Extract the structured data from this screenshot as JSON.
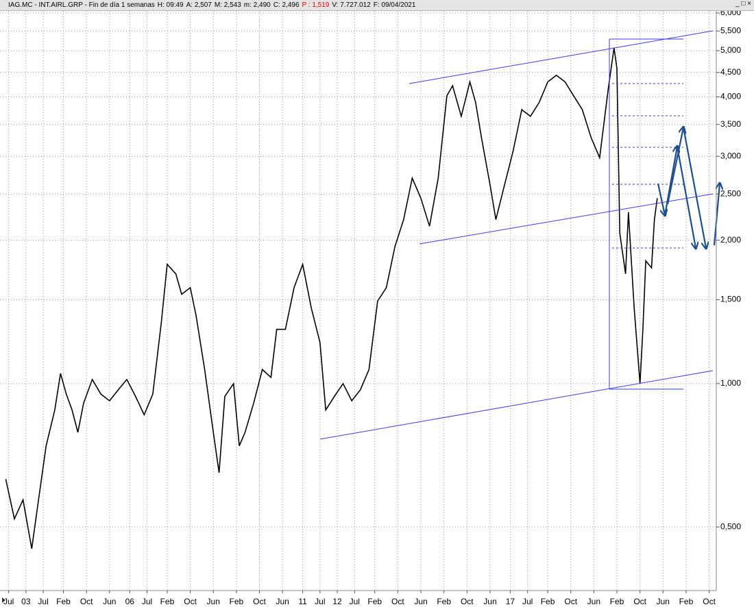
{
  "header": {
    "items": [
      {
        "text": "IAG.MC - INT.AIRL.GRP - Fin de día 1 semanas",
        "color": "#000000"
      },
      {
        "text": "H: 09:49",
        "color": "#000000"
      },
      {
        "text": "A: 2,507",
        "color": "#000000"
      },
      {
        "text": "M: 2,543",
        "color": "#000000"
      },
      {
        "text": "m: 2,490",
        "color": "#000000"
      },
      {
        "text": "C: 2,496",
        "color": "#000000"
      },
      {
        "text": "P : 1,519",
        "color": "#e00000"
      },
      {
        "text": "V: 7.727.012",
        "color": "#000000"
      },
      {
        "text": "F: 09/04/2021",
        "color": "#000000"
      }
    ]
  },
  "chart_data": {
    "type": "line",
    "color": "#000000",
    "log_scale": true,
    "grid": true,
    "x": [
      "2002-06",
      "2002-09",
      "2002-12",
      "2003-03",
      "2003-05",
      "2003-08",
      "2003-11",
      "2004-01",
      "2004-03",
      "2004-05",
      "2004-07",
      "2004-09",
      "2004-12",
      "2005-03",
      "2005-06",
      "2005-09",
      "2005-12",
      "2006-03",
      "2006-06",
      "2006-09",
      "2006-12",
      "2007-02",
      "2007-05",
      "2007-07",
      "2007-10",
      "2007-12",
      "2008-03",
      "2008-06",
      "2008-08",
      "2008-10",
      "2009-01",
      "2009-03",
      "2009-05",
      "2009-08",
      "2009-11",
      "2010-02",
      "2010-04",
      "2010-07",
      "2010-10",
      "2011-01",
      "2011-04",
      "2011-07",
      "2011-09",
      "2011-12",
      "2012-03",
      "2012-06",
      "2012-09",
      "2012-12",
      "2013-03",
      "2013-06",
      "2013-09",
      "2013-12",
      "2014-03",
      "2014-06",
      "2014-09",
      "2014-12",
      "2015-03",
      "2015-05",
      "2015-08",
      "2015-11",
      "2016-01",
      "2016-03",
      "2016-06",
      "2016-08",
      "2016-11",
      "2017-02",
      "2017-05",
      "2017-08",
      "2017-11",
      "2018-02",
      "2018-05",
      "2018-08",
      "2018-11",
      "2019-02",
      "2019-05",
      "2019-08",
      "2019-11",
      "2020-01",
      "2020-02",
      "2020-03",
      "2020-05",
      "2020-06",
      "2020-08",
      "2020-10",
      "2020-11",
      "2020-12",
      "2021-02",
      "2021-03",
      "2021-04"
    ],
    "values": [
      0.63,
      0.52,
      0.57,
      0.45,
      0.55,
      0.74,
      0.88,
      1.05,
      0.95,
      0.88,
      0.79,
      0.91,
      1.02,
      0.95,
      0.92,
      0.97,
      1.02,
      0.94,
      0.86,
      0.95,
      1.35,
      1.78,
      1.7,
      1.54,
      1.59,
      1.39,
      1.07,
      0.79,
      0.65,
      0.94,
      1.0,
      0.74,
      0.79,
      0.91,
      1.07,
      1.03,
      1.3,
      1.3,
      1.59,
      1.78,
      1.44,
      1.22,
      0.88,
      0.94,
      1.0,
      0.92,
      0.97,
      1.07,
      1.49,
      1.59,
      1.94,
      2.21,
      2.7,
      2.45,
      2.14,
      2.7,
      4.02,
      4.22,
      3.64,
      4.3,
      3.89,
      3.29,
      2.61,
      2.21,
      2.61,
      3.08,
      3.76,
      3.64,
      3.89,
      4.3,
      4.44,
      4.3,
      4.02,
      3.76,
      3.29,
      2.98,
      4.16,
      5.07,
      4.59,
      2.07,
      1.7,
      2.29,
      1.44,
      1.0,
      1.3,
      1.81,
      1.75,
      2.21,
      2.45
    ],
    "xlim": [
      "2002-04",
      "2022-12"
    ],
    "xticks": [
      {
        "value": "2002-07",
        "label": "Jul"
      },
      {
        "value": "2003-01",
        "label": "03"
      },
      {
        "value": "2003-07",
        "label": "Jul"
      },
      {
        "value": "2004-02",
        "label": "Feb"
      },
      {
        "value": "2004-10",
        "label": "Oct"
      },
      {
        "value": "2005-06",
        "label": "Jun"
      },
      {
        "value": "2006-01",
        "label": "06"
      },
      {
        "value": "2006-07",
        "label": "Jul"
      },
      {
        "value": "2007-02",
        "label": "Feb"
      },
      {
        "value": "2007-10",
        "label": "Oct"
      },
      {
        "value": "2008-06",
        "label": "Jun"
      },
      {
        "value": "2009-02",
        "label": "Feb"
      },
      {
        "value": "2009-10",
        "label": "Oct"
      },
      {
        "value": "2010-06",
        "label": "Jun"
      },
      {
        "value": "2011-01",
        "label": "11"
      },
      {
        "value": "2011-07",
        "label": "Jul"
      },
      {
        "value": "2012-01",
        "label": "12"
      },
      {
        "value": "2012-07",
        "label": "Jul"
      },
      {
        "value": "2013-02",
        "label": "Feb"
      },
      {
        "value": "2013-10",
        "label": "Oct"
      },
      {
        "value": "2014-06",
        "label": "Jun"
      },
      {
        "value": "2015-02",
        "label": "Feb"
      },
      {
        "value": "2015-10",
        "label": "Oct"
      },
      {
        "value": "2016-06",
        "label": "Jun"
      },
      {
        "value": "2017-01",
        "label": "17"
      },
      {
        "value": "2017-07",
        "label": "Jul"
      },
      {
        "value": "2018-02",
        "label": "Feb"
      },
      {
        "value": "2018-10",
        "label": "Oct"
      },
      {
        "value": "2019-06",
        "label": "Jun"
      },
      {
        "value": "2020-02",
        "label": "Feb"
      },
      {
        "value": "2020-10",
        "label": "Oct"
      },
      {
        "value": "2021-06",
        "label": "Jun"
      },
      {
        "value": "2022-02",
        "label": "Feb"
      },
      {
        "value": "2022-10",
        "label": "Oct"
      }
    ],
    "ylim": [
      0.37,
      6.14
    ],
    "yticks": [
      {
        "value": 6,
        "label": "6,000"
      },
      {
        "value": 5.5,
        "label": "5,500"
      },
      {
        "value": 5,
        "label": "5,000"
      },
      {
        "value": 4.5,
        "label": "4,500"
      },
      {
        "value": 4,
        "label": "4,000"
      },
      {
        "value": 3.5,
        "label": "3,500"
      },
      {
        "value": 3,
        "label": "3,000"
      },
      {
        "value": 2.5,
        "label": "2,500"
      },
      {
        "value": 2,
        "label": "2,000"
      },
      {
        "value": 1.5,
        "label": "1,500"
      },
      {
        "value": 1,
        "label": "1,000"
      },
      {
        "value": 0.5,
        "label": "0,500"
      }
    ]
  }
}
